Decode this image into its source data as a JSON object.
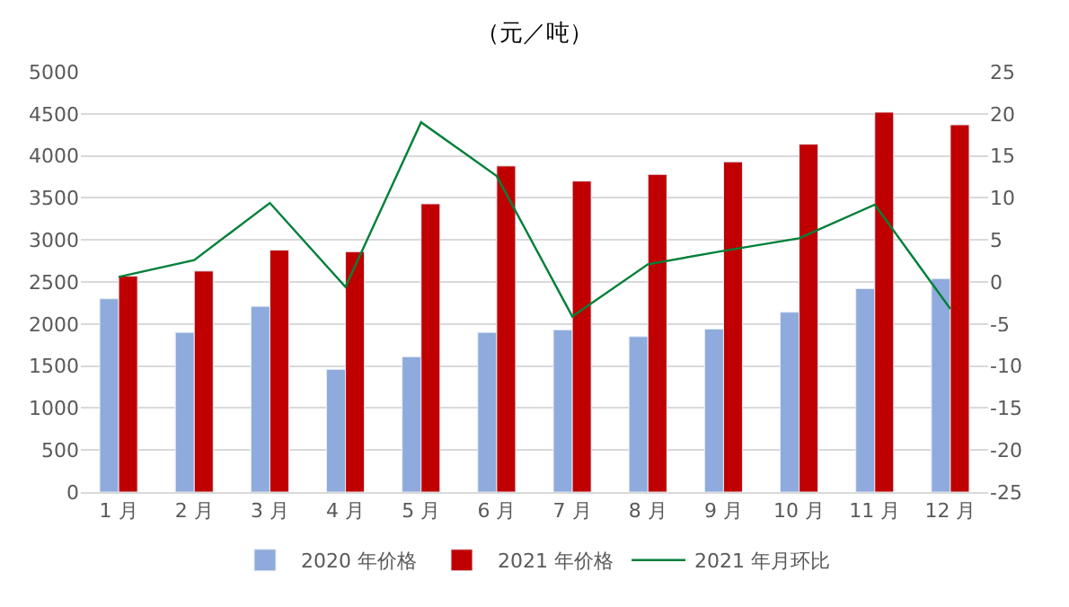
{
  "chart_data": {
    "type": "bar",
    "title": "（元／吨）",
    "categories": [
      "1 月",
      "2 月",
      "3 月",
      "4 月",
      "5 月",
      "6 月",
      "7 月",
      "8 月",
      "9 月",
      "10 月",
      "11 月",
      "12 月"
    ],
    "series": [
      {
        "name": "2020 年价格",
        "color": "#8faadc",
        "values": [
          2300,
          1900,
          2210,
          1460,
          1610,
          1900,
          1930,
          1850,
          1940,
          2140,
          2420,
          2540
        ]
      },
      {
        "name": "2021 年价格",
        "color": "#c00000",
        "values": [
          2570,
          2630,
          2880,
          2860,
          3430,
          3880,
          3700,
          3780,
          3930,
          4140,
          4520,
          4370
        ]
      },
      {
        "name": "2021 年月环比",
        "type": "line",
        "axis": "y2",
        "color": "#00803a",
        "values": [
          0.6,
          2.6,
          9.4,
          -0.6,
          19.0,
          12.6,
          -4.1,
          2.1,
          3.7,
          5.2,
          9.2,
          -3.2
        ]
      }
    ],
    "ylim": [
      0,
      5000
    ],
    "yticks": [
      0,
      500,
      1000,
      1500,
      2000,
      2500,
      3000,
      3500,
      4000,
      4500,
      5000
    ],
    "y2lim": [
      -25,
      25
    ],
    "y2ticks": [
      -25,
      -20,
      -15,
      -10,
      -5,
      0,
      5,
      10,
      15,
      20,
      25
    ],
    "grid": "y",
    "legend": "bottom",
    "marker": "none",
    "line_style": "solid"
  }
}
